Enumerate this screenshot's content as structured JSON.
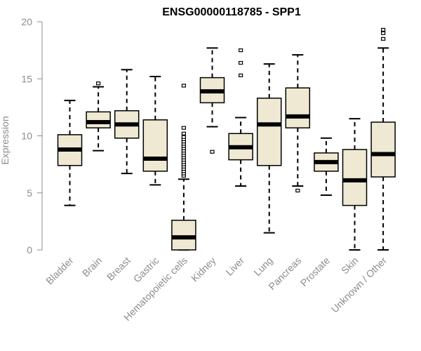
{
  "chart_data": {
    "type": "boxplot",
    "title": "ENSG00000118785 - SPP1",
    "xlabel": "",
    "ylabel": "Expression",
    "ylim": [
      0,
      20
    ],
    "yticks": [
      0,
      5,
      10,
      15,
      20
    ],
    "box_color": "#efe9d3",
    "categories": [
      "Bladder",
      "Brain",
      "Breast",
      "Gastric",
      "Hematopoietic cells",
      "Kidney",
      "Liver",
      "Lung",
      "Pancreas",
      "Prostate",
      "Skin",
      "Unknown / Other"
    ],
    "boxes": [
      {
        "name": "Bladder",
        "whisker_low": 3.9,
        "q1": 7.4,
        "median": 8.8,
        "q3": 10.1,
        "whisker_high": 13.1,
        "outliers": []
      },
      {
        "name": "Brain",
        "whisker_low": 8.7,
        "q1": 10.7,
        "median": 11.2,
        "q3": 12.1,
        "whisker_high": 14.3,
        "outliers": [
          14.6
        ]
      },
      {
        "name": "Breast",
        "whisker_low": 6.7,
        "q1": 9.8,
        "median": 11.0,
        "q3": 12.2,
        "whisker_high": 15.8,
        "outliers": []
      },
      {
        "name": "Gastric",
        "whisker_low": 5.7,
        "q1": 6.9,
        "median": 8.0,
        "q3": 11.4,
        "whisker_high": 15.2,
        "outliers": []
      },
      {
        "name": "Hematopoietic cells",
        "whisker_low": 0.0,
        "q1": 0.0,
        "median": 1.1,
        "q3": 2.6,
        "whisker_high": 6.2,
        "outliers": [
          6.5,
          6.7,
          6.9,
          7.1,
          7.3,
          7.5,
          7.7,
          7.9,
          8.1,
          8.3,
          8.5,
          8.7,
          8.9,
          9.1,
          9.3,
          9.5,
          9.7,
          9.9,
          10.2,
          10.7,
          14.4
        ]
      },
      {
        "name": "Kidney",
        "whisker_low": 10.8,
        "q1": 12.9,
        "median": 13.9,
        "q3": 15.1,
        "whisker_high": 17.7,
        "outliers": [
          8.6
        ]
      },
      {
        "name": "Liver",
        "whisker_low": 5.6,
        "q1": 7.9,
        "median": 9.0,
        "q3": 10.2,
        "whisker_high": 11.6,
        "outliers": [
          15.3,
          16.4,
          17.5
        ]
      },
      {
        "name": "Lung",
        "whisker_low": 1.5,
        "q1": 7.4,
        "median": 11.0,
        "q3": 13.3,
        "whisker_high": 16.3,
        "outliers": []
      },
      {
        "name": "Pancreas",
        "whisker_low": 5.6,
        "q1": 10.7,
        "median": 11.7,
        "q3": 14.2,
        "whisker_high": 17.1,
        "outliers": [
          5.2
        ]
      },
      {
        "name": "Prostate",
        "whisker_low": 4.8,
        "q1": 6.9,
        "median": 7.7,
        "q3": 8.5,
        "whisker_high": 9.8,
        "outliers": []
      },
      {
        "name": "Skin",
        "whisker_low": 0.0,
        "q1": 3.9,
        "median": 6.1,
        "q3": 8.8,
        "whisker_high": 11.5,
        "outliers": []
      },
      {
        "name": "Unknown / Other",
        "whisker_low": 0.0,
        "q1": 6.4,
        "median": 8.4,
        "q3": 11.2,
        "whisker_high": 17.7,
        "outliers": [
          18.5,
          19.0,
          19.3
        ]
      }
    ]
  }
}
